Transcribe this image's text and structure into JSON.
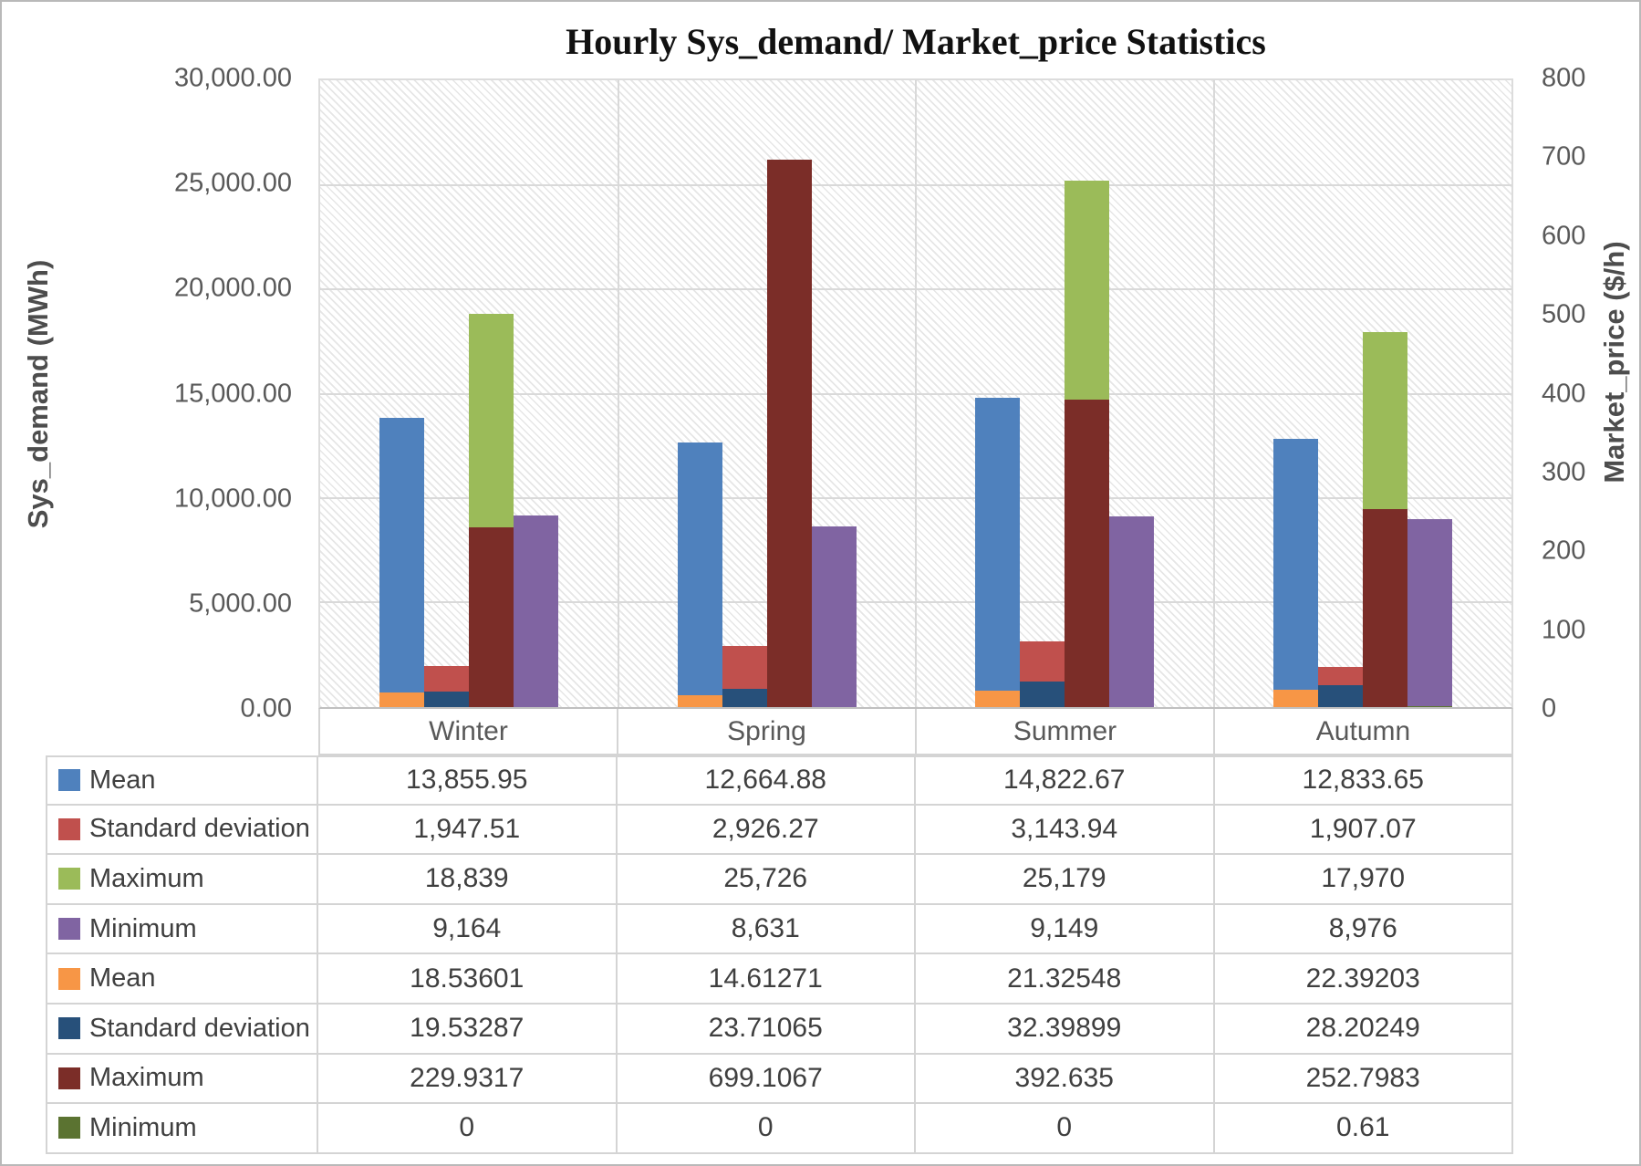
{
  "title": "Hourly Sys_demand/ Market_price Statistics",
  "left_axis": {
    "title": "Sys_demand (MWh)",
    "ticks": [
      "30,000.00",
      "25,000.00",
      "20,000.00",
      "15,000.00",
      "10,000.00",
      "5,000.00",
      "0.00"
    ]
  },
  "right_axis": {
    "title": "Market_price ($/h)",
    "ticks": [
      "800",
      "700",
      "600",
      "500",
      "400",
      "300",
      "200",
      "100",
      "0"
    ]
  },
  "categories": [
    "Winter",
    "Spring",
    "Summer",
    "Autumn"
  ],
  "chart_data": {
    "type": "bar",
    "title": "Hourly Sys_demand/ Market_price Statistics",
    "categories": [
      "Winter",
      "Spring",
      "Summer",
      "Autumn"
    ],
    "xlabel": "",
    "ylabel": "Sys_demand (MWh)",
    "y2label": "Market_price ($/h)",
    "axis_ranges": {
      "left": [
        0,
        30000
      ],
      "right": [
        0,
        800
      ]
    },
    "grid": true,
    "legend_position": "table-below",
    "plot_area_pattern": "diagonal-hatch",
    "series": [
      {
        "name": "Mean",
        "group": "Sys_demand",
        "axis": "left",
        "color": "#4F81BD",
        "values": [
          13855.95,
          12664.88,
          14822.67,
          12833.65
        ]
      },
      {
        "name": "Standard deviation",
        "group": "Sys_demand",
        "axis": "left",
        "color": "#C0504D",
        "values": [
          1947.51,
          2926.27,
          3143.94,
          1907.07
        ]
      },
      {
        "name": "Maximum",
        "group": "Sys_demand",
        "axis": "left",
        "color": "#9BBB59",
        "values": [
          18839,
          25726,
          25179,
          17970
        ]
      },
      {
        "name": "Minimum",
        "group": "Sys_demand",
        "axis": "left",
        "color": "#8064A2",
        "values": [
          9164,
          8631,
          9149,
          8976
        ]
      },
      {
        "name": "Mean",
        "group": "Market_price",
        "axis": "right",
        "color": "#F79646",
        "values": [
          18.53601,
          14.61271,
          21.32548,
          22.39203
        ]
      },
      {
        "name": "Standard deviation",
        "group": "Market_price",
        "axis": "right",
        "color": "#27507A",
        "values": [
          19.53287,
          23.71065,
          32.39899,
          28.20249
        ]
      },
      {
        "name": "Maximum",
        "group": "Market_price",
        "axis": "right",
        "color": "#7B2D28",
        "values": [
          229.9317,
          699.1067,
          392.635,
          252.7983
        ]
      },
      {
        "name": "Minimum",
        "group": "Market_price",
        "axis": "right",
        "color": "#5B7331",
        "values": [
          0,
          0,
          0,
          0.61
        ]
      }
    ]
  },
  "table": {
    "rows": [
      {
        "label": "Mean",
        "color": "#4F81BD",
        "values": [
          "13,855.95",
          "12,664.88",
          "14,822.67",
          "12,833.65"
        ]
      },
      {
        "label": "Standard deviation",
        "color": "#C0504D",
        "values": [
          "1,947.51",
          "2,926.27",
          "3,143.94",
          "1,907.07"
        ]
      },
      {
        "label": "Maximum",
        "color": "#9BBB59",
        "values": [
          "18,839",
          "25,726",
          "25,179",
          "17,970"
        ]
      },
      {
        "label": "Minimum",
        "color": "#8064A2",
        "values": [
          "9,164",
          "8,631",
          "9,149",
          "8,976"
        ]
      },
      {
        "label": "Mean",
        "color": "#F79646",
        "values": [
          "18.53601",
          "14.61271",
          "21.32548",
          "22.39203"
        ]
      },
      {
        "label": "Standard deviation",
        "color": "#27507A",
        "values": [
          "19.53287",
          "23.71065",
          "32.39899",
          "28.20249"
        ]
      },
      {
        "label": "Maximum",
        "color": "#7B2D28",
        "values": [
          "229.9317",
          "699.1067",
          "392.635",
          "252.7983"
        ]
      },
      {
        "label": "Minimum",
        "color": "#5B7331",
        "values": [
          "0",
          "0",
          "0",
          "0.61"
        ]
      }
    ]
  }
}
